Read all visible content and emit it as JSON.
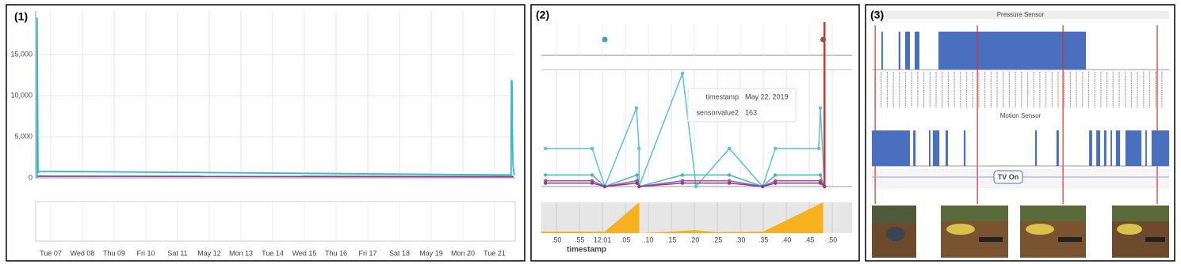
{
  "figure": {
    "labels": [
      "(1)",
      "(2)",
      "(3)"
    ]
  },
  "chart_data": [
    {
      "type": "line",
      "xlim": [
        6.525,
        21.65
      ],
      "ylim": [
        0,
        20000
      ],
      "yticks": [
        0,
        {
          "value": 5000,
          "label": "5,000"
        },
        {
          "value": 10000,
          "label": "10,000"
        },
        {
          "value": 15000,
          "label": "15,000"
        }
      ],
      "xticks": [
        {
          "value": 7,
          "label": "Tue 07"
        },
        {
          "value": 8,
          "label": "Wed 08"
        },
        {
          "value": 9,
          "label": "Thu 09"
        },
        {
          "value": 10,
          "label": "Fri 10"
        },
        {
          "value": 11,
          "label": "Sat 11"
        },
        {
          "value": 12,
          "label": "May 12"
        },
        {
          "value": 13,
          "label": "Mon 13"
        },
        {
          "value": 14,
          "label": "Tue 14"
        },
        {
          "value": 15,
          "label": "Wed 15"
        },
        {
          "value": 16,
          "label": "Thu 16"
        },
        {
          "value": 17,
          "label": "Fri 17"
        },
        {
          "value": 18,
          "label": "Sat 18"
        },
        {
          "value": 19,
          "label": "May 19"
        },
        {
          "value": 20,
          "label": "Mon 20"
        },
        {
          "value": 21,
          "label": "Tue 21"
        }
      ],
      "grid": true,
      "line_width": 1.8,
      "markers": false,
      "series": [
        {
          "color": "#8a3f9a",
          "x": [
            6.57,
            21.6
          ],
          "values": [
            200,
            150
          ]
        },
        {
          "color": "#35b6d0",
          "x": [
            6.57,
            6.57,
            6.6,
            6.62,
            21.52,
            21.53,
            21.55,
            21.56,
            21.58,
            21.62
          ],
          "values": [
            0,
            19500,
            600,
            800,
            350,
            11900,
            11700,
            5500,
            1500,
            300
          ]
        }
      ]
    },
    {
      "type": "scatter",
      "xlim": [
        -0.66,
        12.86
      ],
      "ylim": [
        0,
        2
      ],
      "x": [
        2.1,
        11.6
      ],
      "values": [
        1,
        1
      ],
      "colors": [
        "#3aa8a8",
        "#666666"
      ]
    },
    {
      "type": "line",
      "xlim": [
        -0.66,
        12.86
      ],
      "ylim": [
        0,
        100
      ],
      "line_width": 1.5,
      "markers": true,
      "cursor_x": 11.66,
      "series": [
        {
          "color": "#5bbfdc",
          "x": [
            -0.48,
            1.55,
            2.1,
            3.48,
            3.59,
            3.59,
            5.48,
            6.07,
            7.52,
            8.97,
            9.52,
            11.41,
            11.48,
            11.66
          ],
          "values": [
            33,
            33,
            0,
            68,
            33,
            0,
            98,
            0,
            33,
            0,
            33,
            33,
            68,
            0
          ]
        },
        {
          "color": "#45b5c0",
          "x": [
            -0.48,
            1.55,
            2.1,
            3.5,
            3.6,
            5.48,
            7.52,
            8.97,
            9.52,
            11.48,
            11.66
          ],
          "values": [
            10,
            10,
            0,
            10,
            0,
            10,
            10,
            0,
            10,
            10,
            0
          ]
        },
        {
          "color": "#b04fa0",
          "x": [
            -0.48,
            1.55,
            2.1,
            3.5,
            3.6,
            5.48,
            7.52,
            8.97,
            9.52,
            11.48,
            11.66
          ],
          "values": [
            5,
            5,
            0,
            5,
            0,
            5,
            5,
            0,
            5,
            5,
            0
          ]
        },
        {
          "color": "#7d3c98",
          "x": [
            -0.48,
            1.55,
            2.1,
            3.5,
            3.6,
            5.48,
            7.52,
            8.97,
            9.52,
            11.48,
            11.66
          ],
          "values": [
            3,
            3,
            0,
            3,
            0,
            3,
            3,
            0,
            3,
            3,
            0
          ]
        }
      ],
      "tooltip": [
        {
          "label": "timestamp",
          "value": "May 22, 2019"
        },
        {
          "label": "sensorvalue2",
          "value": 163
        }
      ]
    },
    {
      "type": "area",
      "xlim": [
        -0.66,
        12.86
      ],
      "ylim": [
        0,
        100
      ],
      "color": "#f7b01e",
      "xlabel": "timestamp",
      "x": [
        -0.66,
        2.1,
        3.6,
        3.6,
        5.0,
        6.0,
        7.0,
        9.0,
        11.6,
        11.6,
        12.86
      ],
      "values": [
        5,
        5,
        100,
        0,
        5,
        10,
        3,
        5,
        100,
        0,
        0
      ],
      "xticks": [
        {
          "value": 0,
          "label": ".50"
        },
        {
          "value": 1,
          "label": ".55"
        },
        {
          "value": 2,
          "label": "12:01"
        },
        {
          "value": 3,
          "label": ".05"
        },
        {
          "value": 4,
          "label": ".10"
        },
        {
          "value": 5,
          "label": ".15"
        },
        {
          "value": 6,
          "label": ".20"
        },
        {
          "value": 7,
          "label": ".25"
        },
        {
          "value": 8,
          "label": ".30"
        },
        {
          "value": 9,
          "label": ".35"
        },
        {
          "value": 10,
          "label": ".40"
        },
        {
          "value": 11,
          "label": ".45"
        },
        {
          "value": 12,
          "label": ".50"
        }
      ]
    },
    {
      "type": "timeline",
      "title": "Pressure Sensor",
      "xlim": [
        0,
        100
      ],
      "color": "#4a6fbf",
      "intervals": [
        [
          3.2,
          3.7
        ],
        [
          9,
          9.6
        ],
        [
          11.2,
          12.8
        ],
        [
          14.4,
          16
        ],
        [
          22.4,
          72
        ]
      ],
      "markers": [
        1.1,
        35.5,
        64.3,
        96
      ],
      "marker_color": "#e0302a"
    },
    {
      "type": "timeline",
      "title": "Motion Sensor",
      "xlim": [
        0,
        100
      ],
      "color": "#4a6fbf",
      "annotation": "TV On",
      "intervals": [
        [
          0,
          12.8
        ],
        [
          13.9,
          14.7
        ],
        [
          19.2,
          19.7
        ],
        [
          20.5,
          22.7
        ],
        [
          24.8,
          25.6
        ],
        [
          30.9,
          31.5
        ],
        [
          54.9,
          55.5
        ],
        [
          62.1,
          62.9
        ],
        [
          73.1,
          74.1
        ],
        [
          75.5,
          76.8
        ],
        [
          78.1,
          78.9
        ],
        [
          80.3,
          80.8
        ],
        [
          82.1,
          83.5
        ],
        [
          85.3,
          90.7
        ],
        [
          92,
          92.5
        ],
        [
          94.1,
          100
        ]
      ]
    }
  ]
}
